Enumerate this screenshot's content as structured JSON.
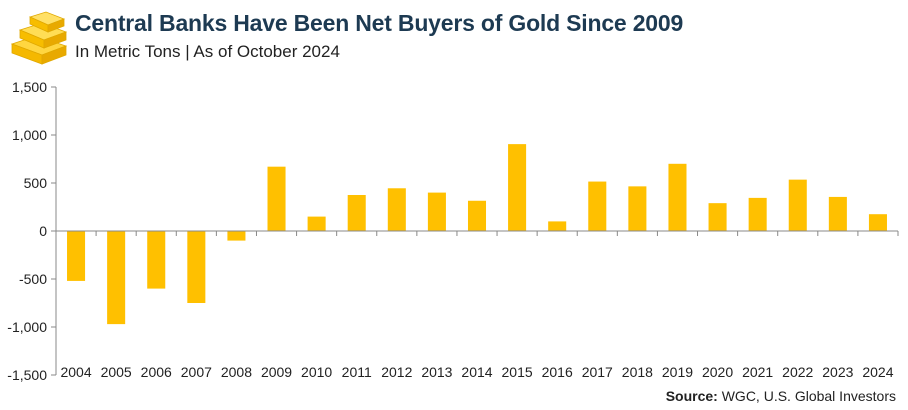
{
  "header": {
    "title": "Central Banks Have Been Net Buyers of Gold Since 2009",
    "subtitle": "In Metric Tons | As of October 2024",
    "logo_icon": "gold-bars-icon"
  },
  "footer": {
    "source_label": "Source:",
    "source_text": " WGC, U.S. Global Investors"
  },
  "chart_data": {
    "type": "bar",
    "title": "Central Banks Have Been Net Buyers of Gold Since 2009",
    "subtitle": "In Metric Tons | As of October 2024",
    "xlabel": "",
    "ylabel": "",
    "ylim": [
      -1500,
      1500
    ],
    "yticks": [
      1500,
      1000,
      500,
      0,
      -500,
      -1000,
      -1500
    ],
    "ytick_labels": [
      "1,500",
      "1,000",
      "500",
      "0",
      "-500",
      "-1,000",
      "-1,500"
    ],
    "categories": [
      "2004",
      "2005",
      "2006",
      "2007",
      "2008",
      "2009",
      "2010",
      "2011",
      "2012",
      "2013",
      "2014",
      "2015",
      "2016",
      "2017",
      "2018",
      "2019",
      "2020",
      "2021",
      "2022",
      "2023",
      "2024"
    ],
    "values": [
      -520,
      -970,
      -600,
      -750,
      -100,
      670,
      150,
      375,
      445,
      400,
      315,
      905,
      100,
      515,
      465,
      700,
      290,
      345,
      535,
      355,
      175
    ],
    "grid": false,
    "legend": "none",
    "bar_color": "#ffc000",
    "axis_color": "#888888"
  }
}
